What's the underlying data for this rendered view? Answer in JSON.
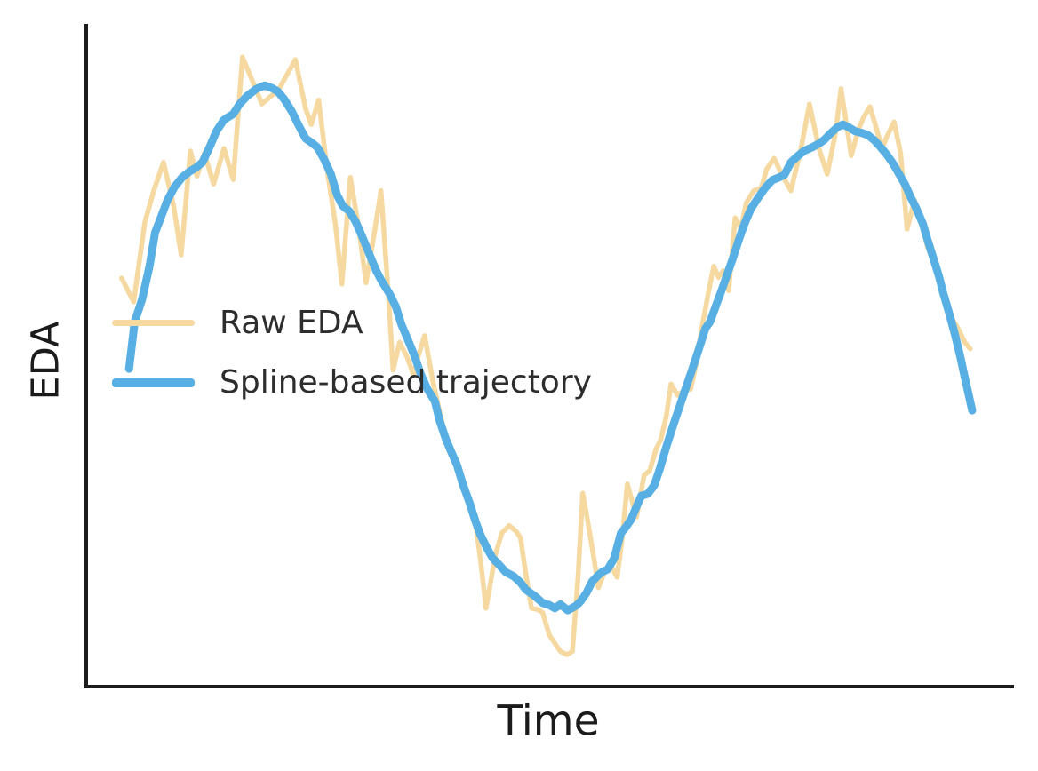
{
  "figure": {
    "background": "#ffffff"
  },
  "axes": {
    "ylabel": "EDA",
    "xlabel": "Time",
    "spine_color": "#1c1c1c",
    "ticks": "none",
    "top_right_spines": false
  },
  "legend": {
    "frame": false,
    "items": [
      {
        "label": "Raw EDA",
        "color": "#f5d9a0",
        "line_width": 5.5
      },
      {
        "label": "Spline-based trajectory",
        "color": "#57afe4",
        "line_width": 9
      }
    ]
  },
  "chart_data": {
    "type": "line",
    "title": "",
    "xlabel": "Time",
    "ylabel": "EDA",
    "x_range": [
      0,
      1
    ],
    "y_range": [
      0,
      1
    ],
    "grid": false,
    "tick_labels": "none",
    "legend_position": "center left",
    "series": [
      {
        "name": "Raw EDA",
        "data_name": "raw-eda-line",
        "color": "#f5d9a0",
        "width": 5.5,
        "points": [
          [
            0.04,
            0.616
          ],
          [
            0.053,
            0.58
          ],
          [
            0.065,
            0.701
          ],
          [
            0.075,
            0.75
          ],
          [
            0.085,
            0.791
          ],
          [
            0.096,
            0.725
          ],
          [
            0.104,
            0.651
          ],
          [
            0.114,
            0.808
          ],
          [
            0.121,
            0.77
          ],
          [
            0.129,
            0.805
          ],
          [
            0.139,
            0.758
          ],
          [
            0.15,
            0.812
          ],
          [
            0.16,
            0.765
          ],
          [
            0.17,
            0.95
          ],
          [
            0.181,
            0.913
          ],
          [
            0.191,
            0.879
          ],
          [
            0.209,
            0.901
          ],
          [
            0.227,
            0.946
          ],
          [
            0.238,
            0.872
          ],
          [
            0.244,
            0.848
          ],
          [
            0.252,
            0.885
          ],
          [
            0.261,
            0.781
          ],
          [
            0.27,
            0.698
          ],
          [
            0.277,
            0.607
          ],
          [
            0.286,
            0.768
          ],
          [
            0.295,
            0.693
          ],
          [
            0.303,
            0.609
          ],
          [
            0.312,
            0.685
          ],
          [
            0.319,
            0.748
          ],
          [
            0.327,
            0.593
          ],
          [
            0.332,
            0.477
          ],
          [
            0.339,
            0.519
          ],
          [
            0.347,
            0.497
          ],
          [
            0.354,
            0.47
          ],
          [
            0.36,
            0.502
          ],
          [
            0.366,
            0.529
          ],
          [
            0.375,
            0.459
          ],
          [
            0.383,
            0.409
          ],
          [
            0.393,
            0.352
          ],
          [
            0.401,
            0.332
          ],
          [
            0.407,
            0.302
          ],
          [
            0.413,
            0.282
          ],
          [
            0.419,
            0.262
          ],
          [
            0.426,
            0.191
          ],
          [
            0.432,
            0.117
          ],
          [
            0.442,
            0.197
          ],
          [
            0.449,
            0.231
          ],
          [
            0.457,
            0.242
          ],
          [
            0.464,
            0.234
          ],
          [
            0.469,
            0.224
          ],
          [
            0.475,
            0.168
          ],
          [
            0.481,
            0.117
          ],
          [
            0.488,
            0.115
          ],
          [
            0.493,
            0.11
          ],
          [
            0.5,
            0.077
          ],
          [
            0.506,
            0.064
          ],
          [
            0.512,
            0.052
          ],
          [
            0.519,
            0.047
          ],
          [
            0.525,
            0.052
          ],
          [
            0.531,
            0.164
          ],
          [
            0.536,
            0.291
          ],
          [
            0.542,
            0.244
          ],
          [
            0.548,
            0.193
          ],
          [
            0.553,
            0.148
          ],
          [
            0.559,
            0.17
          ],
          [
            0.565,
            0.185
          ],
          [
            0.573,
            0.164
          ],
          [
            0.578,
            0.217
          ],
          [
            0.584,
            0.305
          ],
          [
            0.594,
            0.255
          ],
          [
            0.602,
            0.318
          ],
          [
            0.608,
            0.325
          ],
          [
            0.615,
            0.358
          ],
          [
            0.62,
            0.372
          ],
          [
            0.626,
            0.408
          ],
          [
            0.631,
            0.456
          ],
          [
            0.638,
            0.439
          ],
          [
            0.645,
            0.446
          ],
          [
            0.652,
            0.448
          ],
          [
            0.658,
            0.486
          ],
          [
            0.664,
            0.54
          ],
          [
            0.671,
            0.593
          ],
          [
            0.677,
            0.634
          ],
          [
            0.682,
            0.617
          ],
          [
            0.687,
            0.627
          ],
          [
            0.693,
            0.597
          ],
          [
            0.7,
            0.707
          ],
          [
            0.706,
            0.691
          ],
          [
            0.712,
            0.73
          ],
          [
            0.72,
            0.748
          ],
          [
            0.728,
            0.752
          ],
          [
            0.734,
            0.781
          ],
          [
            0.742,
            0.797
          ],
          [
            0.75,
            0.773
          ],
          [
            0.76,
            0.748
          ],
          [
            0.771,
            0.813
          ],
          [
            0.78,
            0.879
          ],
          [
            0.79,
            0.813
          ],
          [
            0.799,
            0.773
          ],
          [
            0.808,
            0.835
          ],
          [
            0.814,
            0.902
          ],
          [
            0.82,
            0.847
          ],
          [
            0.825,
            0.801
          ],
          [
            0.832,
            0.838
          ],
          [
            0.838,
            0.858
          ],
          [
            0.845,
            0.875
          ],
          [
            0.852,
            0.842
          ],
          [
            0.858,
            0.812
          ],
          [
            0.864,
            0.832
          ],
          [
            0.871,
            0.852
          ],
          [
            0.878,
            0.805
          ],
          [
            0.885,
            0.69
          ],
          [
            0.893,
            0.734
          ],
          [
            0.901,
            0.698
          ],
          [
            0.907,
            0.663
          ],
          [
            0.914,
            0.64
          ],
          [
            0.921,
            0.604
          ],
          [
            0.927,
            0.577
          ],
          [
            0.934,
            0.553
          ],
          [
            0.941,
            0.537
          ],
          [
            0.947,
            0.519
          ],
          [
            0.953,
            0.509
          ]
        ]
      },
      {
        "name": "Spline-based trajectory",
        "data_name": "spline-trajectory-line",
        "color": "#57afe4",
        "width": 9,
        "points": [
          [
            0.048,
            0.479
          ],
          [
            0.054,
            0.55
          ],
          [
            0.062,
            0.584
          ],
          [
            0.07,
            0.634
          ],
          [
            0.076,
            0.685
          ],
          [
            0.081,
            0.703
          ],
          [
            0.089,
            0.733
          ],
          [
            0.097,
            0.754
          ],
          [
            0.105,
            0.768
          ],
          [
            0.113,
            0.777
          ],
          [
            0.12,
            0.783
          ],
          [
            0.127,
            0.791
          ],
          [
            0.135,
            0.815
          ],
          [
            0.142,
            0.838
          ],
          [
            0.15,
            0.855
          ],
          [
            0.16,
            0.864
          ],
          [
            0.167,
            0.879
          ],
          [
            0.175,
            0.891
          ],
          [
            0.185,
            0.902
          ],
          [
            0.194,
            0.907
          ],
          [
            0.202,
            0.903
          ],
          [
            0.208,
            0.898
          ],
          [
            0.215,
            0.886
          ],
          [
            0.223,
            0.868
          ],
          [
            0.23,
            0.848
          ],
          [
            0.238,
            0.827
          ],
          [
            0.246,
            0.819
          ],
          [
            0.251,
            0.813
          ],
          [
            0.258,
            0.795
          ],
          [
            0.265,
            0.774
          ],
          [
            0.272,
            0.741
          ],
          [
            0.278,
            0.725
          ],
          [
            0.285,
            0.717
          ],
          [
            0.292,
            0.701
          ],
          [
            0.299,
            0.678
          ],
          [
            0.306,
            0.654
          ],
          [
            0.314,
            0.627
          ],
          [
            0.32,
            0.611
          ],
          [
            0.328,
            0.593
          ],
          [
            0.335,
            0.573
          ],
          [
            0.341,
            0.546
          ],
          [
            0.348,
            0.523
          ],
          [
            0.355,
            0.499
          ],
          [
            0.362,
            0.47
          ],
          [
            0.369,
            0.448
          ],
          [
            0.377,
            0.43
          ],
          [
            0.382,
            0.401
          ],
          [
            0.389,
            0.372
          ],
          [
            0.395,
            0.352
          ],
          [
            0.401,
            0.333
          ],
          [
            0.407,
            0.305
          ],
          [
            0.414,
            0.278
          ],
          [
            0.421,
            0.247
          ],
          [
            0.426,
            0.228
          ],
          [
            0.433,
            0.208
          ],
          [
            0.439,
            0.193
          ],
          [
            0.446,
            0.183
          ],
          [
            0.453,
            0.172
          ],
          [
            0.462,
            0.165
          ],
          [
            0.469,
            0.156
          ],
          [
            0.475,
            0.145
          ],
          [
            0.484,
            0.136
          ],
          [
            0.493,
            0.125
          ],
          [
            0.5,
            0.122
          ],
          [
            0.506,
            0.117
          ],
          [
            0.512,
            0.123
          ],
          [
            0.52,
            0.114
          ],
          [
            0.529,
            0.121
          ],
          [
            0.534,
            0.128
          ],
          [
            0.54,
            0.14
          ],
          [
            0.546,
            0.157
          ],
          [
            0.552,
            0.166
          ],
          [
            0.557,
            0.172
          ],
          [
            0.563,
            0.176
          ],
          [
            0.57,
            0.193
          ],
          [
            0.577,
            0.23
          ],
          [
            0.582,
            0.239
          ],
          [
            0.588,
            0.251
          ],
          [
            0.594,
            0.271
          ],
          [
            0.599,
            0.287
          ],
          [
            0.606,
            0.29
          ],
          [
            0.613,
            0.303
          ],
          [
            0.619,
            0.328
          ],
          [
            0.625,
            0.357
          ],
          [
            0.633,
            0.392
          ],
          [
            0.64,
            0.421
          ],
          [
            0.646,
            0.446
          ],
          [
            0.654,
            0.479
          ],
          [
            0.661,
            0.509
          ],
          [
            0.668,
            0.54
          ],
          [
            0.673,
            0.55
          ],
          [
            0.68,
            0.577
          ],
          [
            0.686,
            0.6
          ],
          [
            0.691,
            0.62
          ],
          [
            0.697,
            0.644
          ],
          [
            0.704,
            0.674
          ],
          [
            0.71,
            0.698
          ],
          [
            0.717,
            0.721
          ],
          [
            0.725,
            0.738
          ],
          [
            0.732,
            0.752
          ],
          [
            0.74,
            0.764
          ],
          [
            0.747,
            0.768
          ],
          [
            0.753,
            0.772
          ],
          [
            0.76,
            0.791
          ],
          [
            0.767,
            0.8
          ],
          [
            0.774,
            0.808
          ],
          [
            0.782,
            0.813
          ],
          [
            0.79,
            0.819
          ],
          [
            0.796,
            0.825
          ],
          [
            0.803,
            0.835
          ],
          [
            0.81,
            0.844
          ],
          [
            0.816,
            0.848
          ],
          [
            0.822,
            0.844
          ],
          [
            0.829,
            0.838
          ],
          [
            0.837,
            0.835
          ],
          [
            0.843,
            0.832
          ],
          [
            0.85,
            0.824
          ],
          [
            0.857,
            0.813
          ],
          [
            0.863,
            0.803
          ],
          [
            0.87,
            0.789
          ],
          [
            0.877,
            0.772
          ],
          [
            0.883,
            0.757
          ],
          [
            0.889,
            0.738
          ],
          [
            0.895,
            0.721
          ],
          [
            0.902,
            0.698
          ],
          [
            0.907,
            0.674
          ],
          [
            0.913,
            0.647
          ],
          [
            0.919,
            0.62
          ],
          [
            0.924,
            0.593
          ],
          [
            0.93,
            0.564
          ],
          [
            0.936,
            0.533
          ],
          [
            0.942,
            0.499
          ],
          [
            0.947,
            0.466
          ],
          [
            0.952,
            0.435
          ],
          [
            0.955,
            0.416
          ]
        ]
      }
    ]
  }
}
